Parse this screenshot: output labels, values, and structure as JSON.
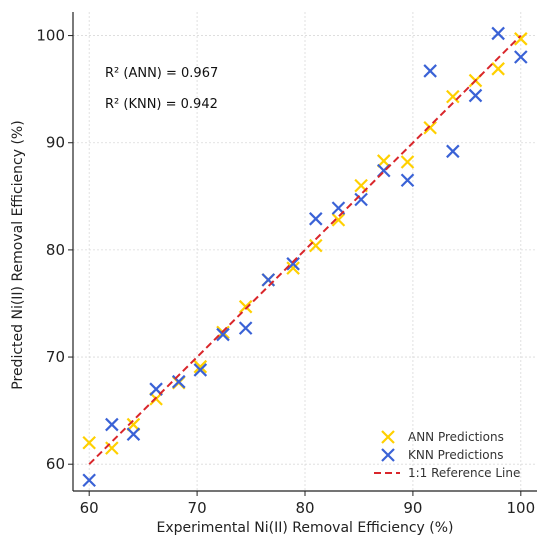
{
  "chart_data": {
    "type": "scatter",
    "xlabel": "Experimental Ni(II) Removal Efficiency (%)",
    "ylabel": "Predicted Ni(II) Removal Efficiency (%)",
    "xlim": [
      58.5,
      101.5
    ],
    "ylim": [
      57.5,
      102.2
    ],
    "xticks": [
      60,
      70,
      80,
      90,
      100
    ],
    "yticks": [
      60,
      70,
      80,
      90,
      100
    ],
    "grid": true,
    "legend_position": "bottom-right",
    "annotations": [
      "R² (ANN) = 0.967",
      "R² (KNN) = 0.942"
    ],
    "series": [
      {
        "name": "ANN Predictions",
        "marker": "x",
        "color": "#FFD000",
        "x": [
          60.0,
          62.1,
          64.1,
          66.2,
          68.3,
          70.3,
          72.4,
          74.5,
          76.6,
          78.9,
          81.0,
          83.1,
          85.2,
          87.3,
          89.5,
          91.6,
          93.7,
          95.8,
          97.9,
          100.0
        ],
        "y": [
          62.0,
          61.5,
          63.7,
          66.1,
          67.6,
          69.1,
          72.3,
          74.7,
          77.2,
          78.3,
          80.4,
          82.8,
          86.0,
          88.3,
          88.2,
          91.4,
          94.3,
          95.8,
          96.9,
          99.7
        ]
      },
      {
        "name": "KNN Predictions",
        "marker": "x",
        "color": "#3A62D6",
        "x": [
          60.0,
          62.1,
          64.1,
          66.2,
          68.3,
          70.3,
          72.4,
          74.5,
          76.6,
          78.9,
          81.0,
          83.1,
          85.2,
          87.3,
          89.5,
          91.6,
          93.7,
          95.8,
          97.9,
          100.0
        ],
        "y": [
          58.5,
          63.7,
          62.8,
          67.0,
          67.7,
          68.8,
          72.1,
          72.7,
          77.2,
          78.7,
          82.9,
          83.9,
          84.7,
          87.4,
          86.5,
          96.7,
          89.2,
          94.4,
          100.2,
          98.0
        ]
      },
      {
        "name": "1:1 Reference Line",
        "type": "line",
        "style": "dashed",
        "color": "#D9262B",
        "x": [
          60,
          100
        ],
        "y": [
          60,
          100
        ]
      }
    ]
  }
}
